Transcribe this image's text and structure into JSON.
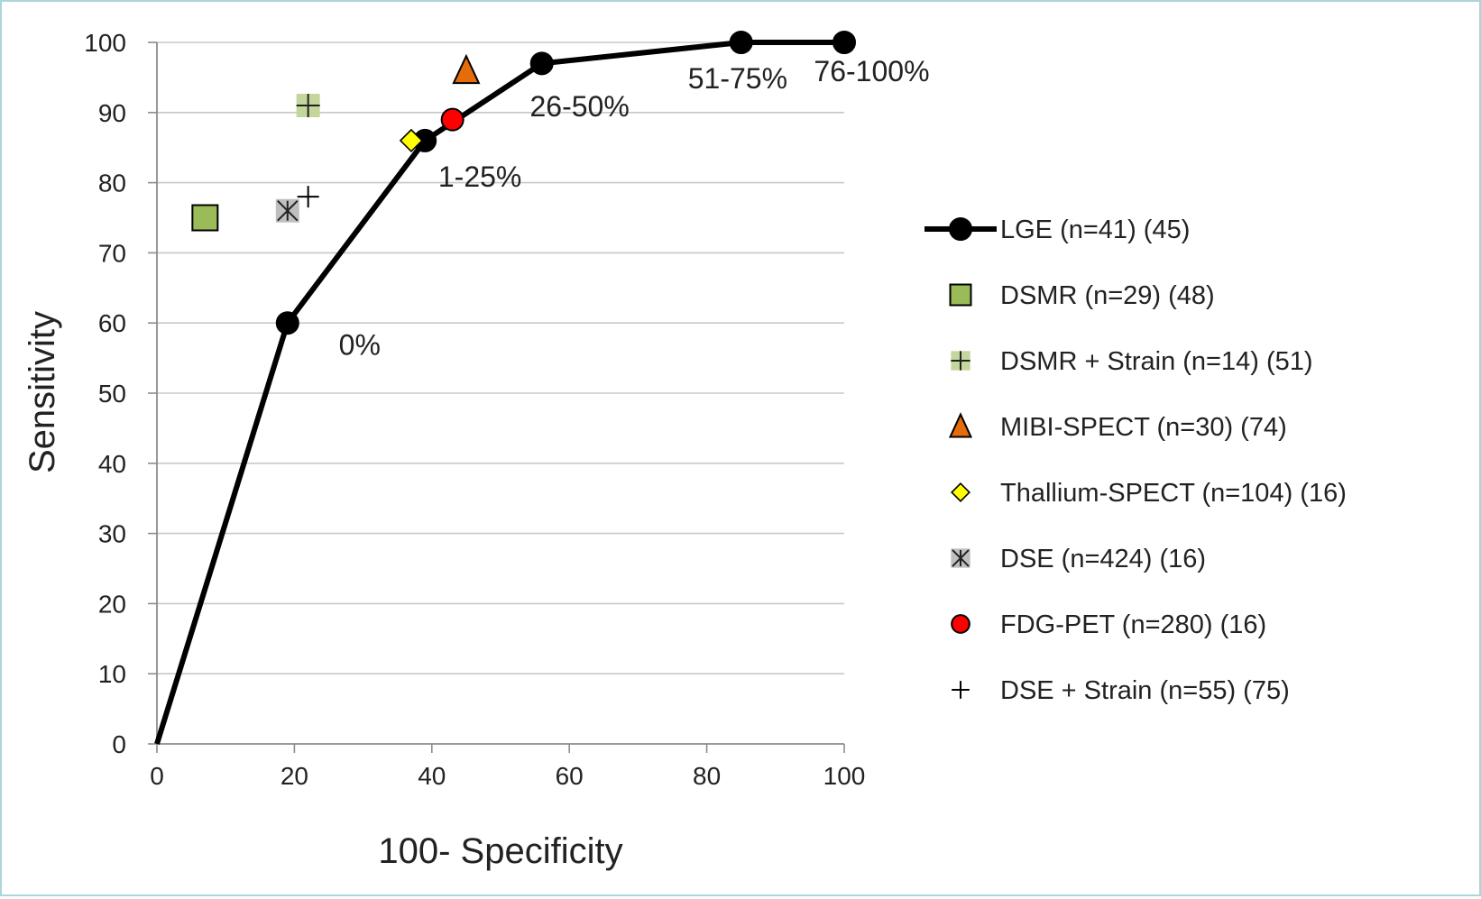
{
  "chart_data": {
    "type": "scatter",
    "title": "",
    "xlabel": "100- Specificity",
    "ylabel": "Sensitivity",
    "xlim": [
      0,
      100
    ],
    "ylim": [
      0,
      100
    ],
    "xticks": [
      0,
      20,
      40,
      60,
      80,
      100
    ],
    "yticks": [
      0,
      10,
      20,
      30,
      40,
      50,
      60,
      70,
      80,
      90,
      100
    ],
    "grid": "horizontal",
    "legend_position": "right",
    "series": [
      {
        "name": "LGE (n=41) (45)",
        "marker": "circle-line",
        "color": "#000000",
        "points": [
          {
            "x": 0,
            "y": 0
          },
          {
            "x": 19,
            "y": 60
          },
          {
            "x": 39,
            "y": 86
          },
          {
            "x": 56,
            "y": 97
          },
          {
            "x": 85,
            "y": 100
          },
          {
            "x": 100,
            "y": 100
          }
        ]
      },
      {
        "name": "DSMR (n=29) (48)",
        "marker": "square",
        "color": "#9bbb59",
        "points": [
          {
            "x": 7,
            "y": 75
          }
        ]
      },
      {
        "name": "DSMR + Strain (n=14) (51)",
        "marker": "plus-square",
        "color": "#c3d69b",
        "points": [
          {
            "x": 22,
            "y": 91
          }
        ]
      },
      {
        "name": "MIBI-SPECT (n=30) (74)",
        "marker": "triangle",
        "color": "#e46c0a",
        "points": [
          {
            "x": 45,
            "y": 96
          }
        ]
      },
      {
        "name": "Thallium-SPECT (n=104) (16)",
        "marker": "diamond",
        "color": "#ffff00",
        "points": [
          {
            "x": 37,
            "y": 86
          }
        ]
      },
      {
        "name": "DSE (n=424) (16)",
        "marker": "asterisk-square",
        "color": "#bfbfbf",
        "points": [
          {
            "x": 19,
            "y": 76
          }
        ]
      },
      {
        "name": "FDG-PET (n=280) (16)",
        "marker": "circle",
        "color": "#ff0000",
        "points": [
          {
            "x": 43,
            "y": 89
          }
        ]
      },
      {
        "name": "DSE + Strain (n=55) (75)",
        "marker": "plus",
        "color": "#000000",
        "points": [
          {
            "x": 22,
            "y": 78
          }
        ]
      }
    ],
    "annotations": [
      {
        "text": "0%",
        "x": 29.5,
        "y": 57
      },
      {
        "text": "1-25%",
        "x": 47,
        "y": 81
      },
      {
        "text": "26-50%",
        "x": 61.5,
        "y": 91
      },
      {
        "text": "51-75%",
        "x": 84.5,
        "y": 95
      },
      {
        "text": "76-100%",
        "x": 104,
        "y": 96
      }
    ]
  }
}
